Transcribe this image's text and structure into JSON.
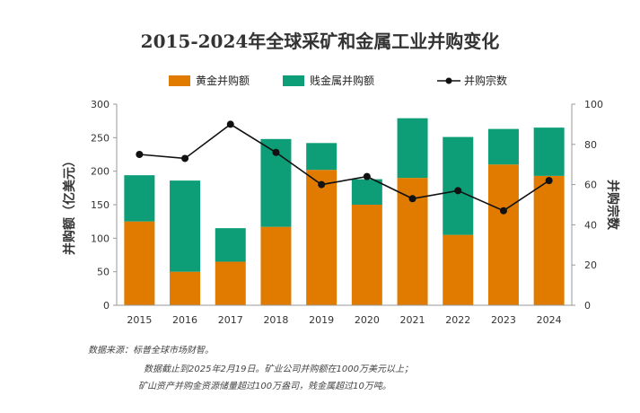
{
  "chart_data": {
    "type": "bar",
    "title": "2015-2024年全球采矿和金属工业并购变化",
    "categories": [
      "2015",
      "2016",
      "2017",
      "2018",
      "2019",
      "2020",
      "2021",
      "2022",
      "2023",
      "2024"
    ],
    "series": [
      {
        "name": "黄金并购额",
        "kind": "bar",
        "axis": "left",
        "color": "#e07b00",
        "values": [
          125,
          50,
          65,
          117,
          202,
          150,
          190,
          105,
          210,
          193
        ]
      },
      {
        "name": "贱金属并购额",
        "kind": "bar",
        "axis": "left",
        "color": "#0d9e78",
        "values": [
          69,
          136,
          50,
          131,
          40,
          38,
          89,
          146,
          53,
          72
        ]
      },
      {
        "name": "并购宗数",
        "kind": "line",
        "axis": "right",
        "color": "#111111",
        "values": [
          75,
          73,
          90,
          76,
          60,
          64,
          53,
          57,
          47,
          62
        ]
      }
    ],
    "ylabel": "并购额（亿美元）",
    "y2label": "并购宗数",
    "ylim": [
      0,
      300
    ],
    "y2lim": [
      0,
      100
    ],
    "yticks": [
      0,
      50,
      100,
      150,
      200,
      250,
      300
    ],
    "y2ticks": [
      0,
      20,
      40,
      60,
      80,
      100
    ],
    "stacked": true,
    "legend": "top",
    "grid": false
  },
  "notes": {
    "line1": "数据来源：标普全球市场财智。",
    "line2": "数据截止到2025年2月19日。矿业公司并购额在1000万美元以上；",
    "line3": "矿山资产并购金资源储量超过100万盎司，贱金属超过10万吨。"
  }
}
